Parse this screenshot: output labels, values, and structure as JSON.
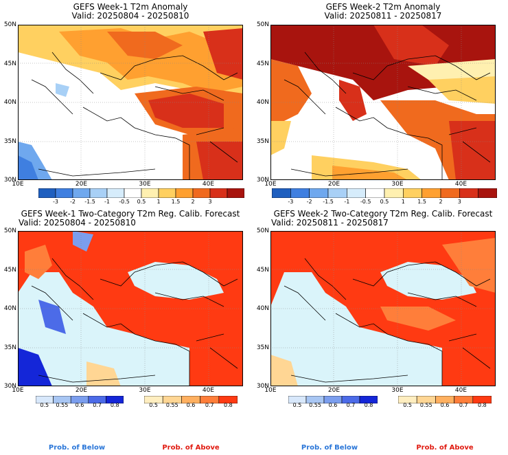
{
  "panels": [
    {
      "title1": "GEFS Week-1 T2m Anomaly",
      "title2": "Valid: 20250804 - 20250810"
    },
    {
      "title1": "GEFS Week-2 T2m Anomaly",
      "title2": "Valid: 20250811 - 20250817"
    },
    {
      "title1": "GEFS Week-1 Two-Category T2m Reg. Calib. Forecast",
      "title2": "Valid: 20250804 - 20250810"
    },
    {
      "title1": "GEFS Week-2 Two-Category T2m Reg. Calib. Forecast",
      "title2": "Valid: 20250811 - 20250817"
    }
  ],
  "axes": {
    "lat_labels": [
      "50N",
      "45N",
      "40N",
      "35N",
      "30N"
    ],
    "lon_labels": [
      "10E",
      "20E",
      "30E",
      "40E"
    ]
  },
  "anomaly_colorbar": {
    "labels": [
      "-3",
      "-2",
      "-1.5",
      "-1",
      "-0.5",
      "0.5",
      "1",
      "1.5",
      "2",
      "3"
    ],
    "colors": [
      "#1f5fbf",
      "#3f7fe0",
      "#6fa8ee",
      "#a8d0f6",
      "#d6ecfb",
      "#ffffff",
      "#fff0b0",
      "#ffd060",
      "#ffa030",
      "#f06a1e",
      "#d8301a",
      "#a8140e"
    ]
  },
  "prob_below": {
    "labels": [
      "0.5",
      "0.55",
      "0.6",
      "0.7",
      "0.8"
    ],
    "colors": [
      "#d8e8fb",
      "#a8c6f3",
      "#7b9eee",
      "#4c6be8",
      "#1426d8"
    ],
    "footer": "Prob. of Below",
    "footer_color": "#2a76d8"
  },
  "prob_above": {
    "labels": [
      "0.5",
      "0.55",
      "0.6",
      "0.7",
      "0.8"
    ],
    "colors": [
      "#ffeec0",
      "#ffd694",
      "#ffb060",
      "#ff7e3a",
      "#ff3a12"
    ],
    "footer": "Prob. of Above",
    "footer_color": "#e01a10"
  },
  "map_colors": {
    "sea": "#daf4fa",
    "neutral": "#ffffff",
    "coast": "#000000"
  }
}
